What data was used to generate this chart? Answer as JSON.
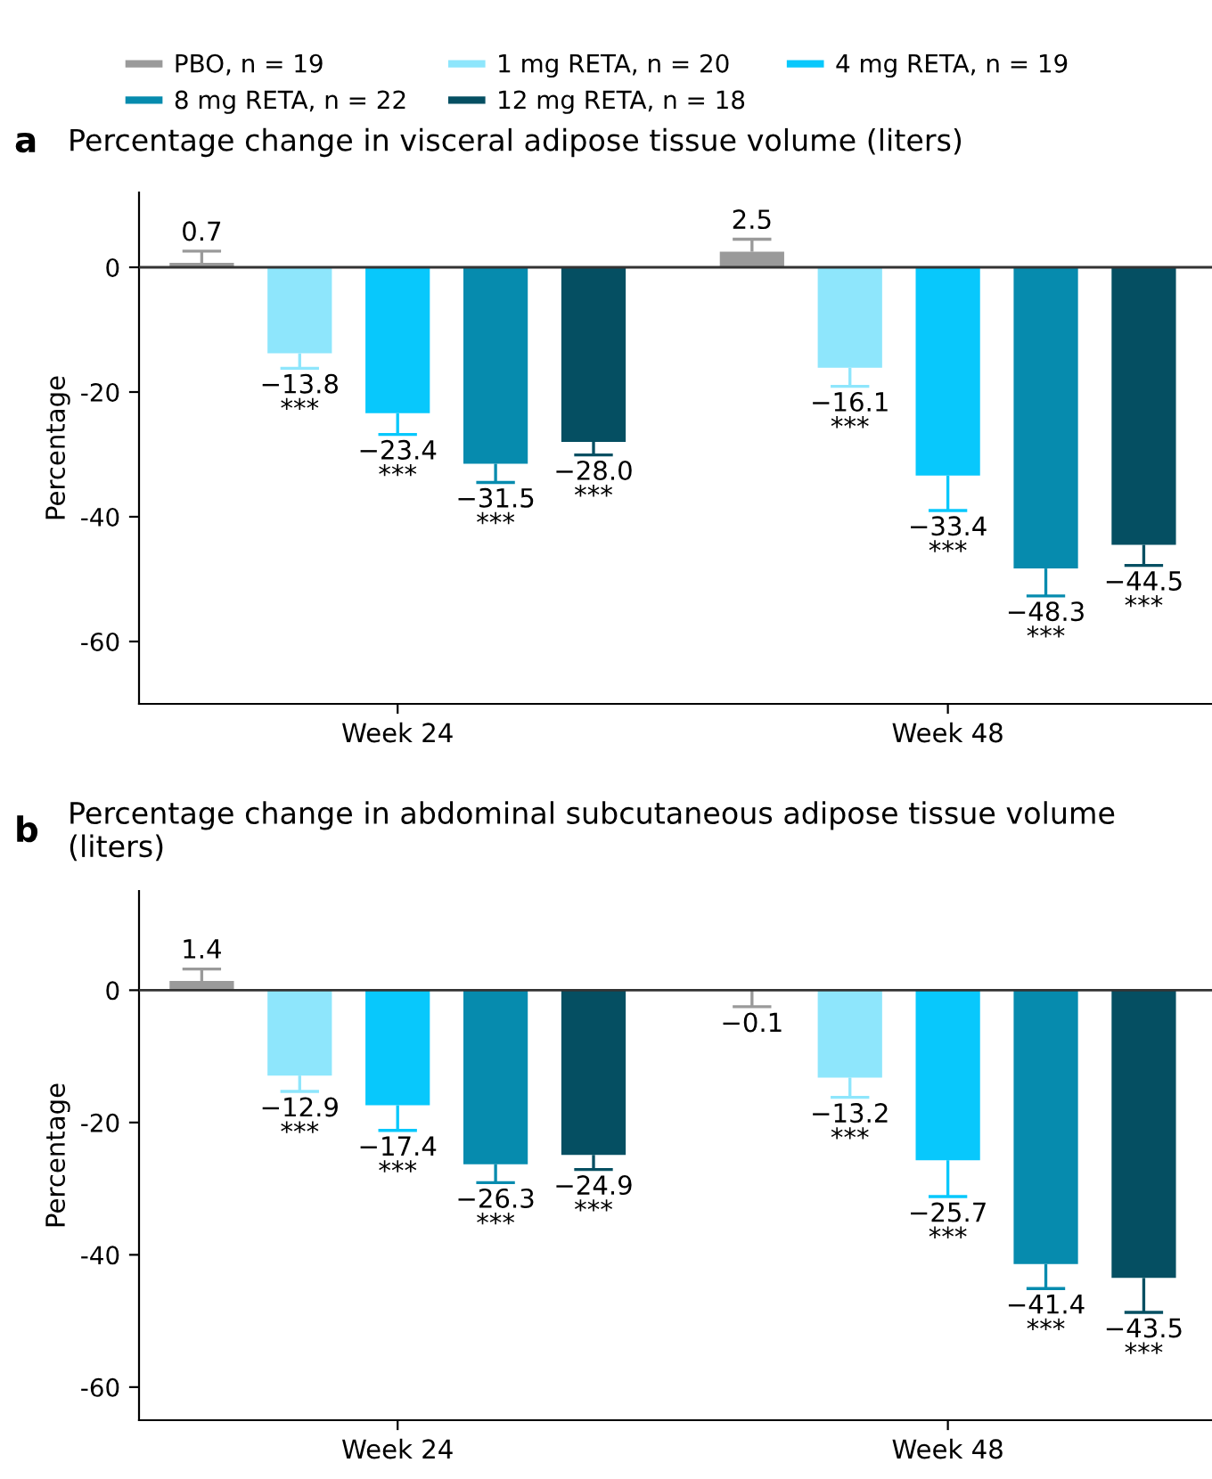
{
  "chart_data": [
    {
      "type": "bar",
      "title": "Percentage change in visceral adipose tissue volume (liters)",
      "ylabel": "Percentage",
      "categories": [
        "Week 24",
        "Week 48"
      ],
      "ylim": [
        -70,
        12
      ],
      "yticks": [
        {
          "value": -60,
          "label": "-60"
        },
        {
          "value": -40,
          "label": "-40"
        },
        {
          "value": -20,
          "label": "-20"
        },
        0
      ],
      "legend": "top",
      "grid": false,
      "annotations": [
        "a"
      ],
      "ref_lines": [
        {
          "axis": "y",
          "value": 0,
          "label": null,
          "color": "#333333"
        }
      ],
      "series": [
        {
          "name": "PBO, n = 19",
          "color": "#9a9a9a",
          "values": [
            0.7,
            2.5
          ],
          "errors": [
            [
              0.7,
              2.6
            ],
            [
              2.5,
              4.5
            ]
          ],
          "value_labels": [
            "0.7",
            "2.5"
          ]
        },
        {
          "name": "1 mg RETA, n = 20",
          "color": "#8ee6fc",
          "values": [
            -13.8,
            -16.1
          ],
          "errors": [
            [
              -16.2,
              -13.8
            ],
            [
              -19.1,
              -16.1
            ]
          ],
          "value_labels": [
            "−13.8\n***",
            "−16.1\n***"
          ]
        },
        {
          "name": "4 mg RETA, n = 19",
          "color": "#08c8fc",
          "values": [
            -23.4,
            -33.4
          ],
          "errors": [
            [
              -26.8,
              -23.4
            ],
            [
              -39.0,
              -33.4
            ]
          ],
          "value_labels": [
            "−23.4\n***",
            "−33.4\n***"
          ]
        },
        {
          "name": "8 mg RETA, n = 22",
          "color": "#068bae",
          "values": [
            -31.5,
            -48.3
          ],
          "errors": [
            [
              -34.5,
              -31.5
            ],
            [
              -52.7,
              -48.3
            ]
          ],
          "value_labels": [
            "−31.5\n***",
            "−48.3\n***"
          ]
        },
        {
          "name": "12 mg RETA, n = 18",
          "color": "#054f62",
          "values": [
            -28.0,
            -44.5
          ],
          "errors": [
            [
              -30.1,
              -28.0
            ],
            [
              -47.8,
              -44.5
            ]
          ],
          "value_labels": [
            "−28.0\n***",
            "−44.5\n***"
          ]
        }
      ]
    },
    {
      "type": "bar",
      "title": "Percentage change in abdominal subcutaneous adipose tissue volume (liters)",
      "ylabel": "Percentage",
      "categories": [
        "Week 24",
        "Week 48"
      ],
      "ylim": [
        -65,
        15
      ],
      "yticks": [
        {
          "value": -60,
          "label": "-60"
        },
        {
          "value": -40,
          "label": "-40"
        },
        {
          "value": -20,
          "label": "-20"
        },
        0
      ],
      "grid": false,
      "annotations": [
        "b"
      ],
      "ref_lines": [
        {
          "axis": "y",
          "value": 0,
          "label": null,
          "color": "#333333"
        }
      ],
      "series": [
        {
          "color": "#9a9a9a",
          "values": [
            1.4,
            -0.1
          ],
          "errors": [
            [
              1.4,
              3.2
            ],
            [
              -2.5,
              -0.1
            ]
          ],
          "value_labels": [
            "1.4",
            "−0.1"
          ]
        },
        {
          "color": "#8ee6fc",
          "values": [
            -12.9,
            -13.2
          ],
          "errors": [
            [
              -15.3,
              -12.9
            ],
            [
              -16.2,
              -13.2
            ]
          ],
          "value_labels": [
            "−12.9\n***",
            "−13.2\n***"
          ]
        },
        {
          "color": "#08c8fc",
          "values": [
            -17.4,
            -25.7
          ],
          "errors": [
            [
              -21.2,
              -17.4
            ],
            [
              -31.2,
              -25.7
            ]
          ],
          "value_labels": [
            "−17.4\n***",
            "−25.7\n***"
          ]
        },
        {
          "color": "#068bae",
          "values": [
            -26.3,
            -41.4
          ],
          "errors": [
            [
              -29.1,
              -26.3
            ],
            [
              -45.1,
              -41.4
            ]
          ],
          "value_labels": [
            "−26.3\n***",
            "−41.4\n***"
          ]
        },
        {
          "color": "#054f62",
          "values": [
            -24.9,
            -43.5
          ],
          "errors": [
            [
              -27.1,
              -24.9
            ],
            [
              -48.7,
              -43.5
            ]
          ],
          "value_labels": [
            "−24.9\n***",
            "−43.5\n***"
          ]
        }
      ]
    }
  ]
}
